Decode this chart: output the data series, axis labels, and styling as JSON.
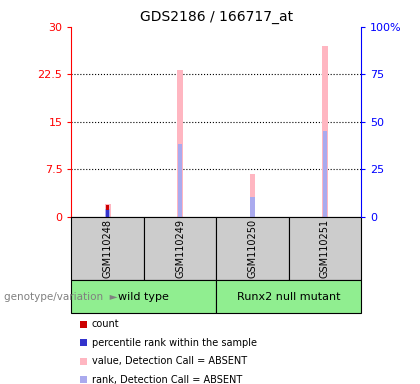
{
  "title": "GDS2186 / 166717_at",
  "samples": [
    "GSM110248",
    "GSM110249",
    "GSM110250",
    "GSM110251"
  ],
  "left_yticks": [
    0,
    7.5,
    15,
    22.5,
    30
  ],
  "left_ylim": [
    0,
    30
  ],
  "right_yticks": [
    0,
    25,
    50,
    75,
    100
  ],
  "right_ylim": [
    0,
    100
  ],
  "pink_bar_color": "#FFB6C1",
  "lavender_bar_color": "#AAAAEE",
  "red_bar_color": "#CC0000",
  "blue_bar_color": "#3333CC",
  "value_bars": [
    2.0,
    23.2,
    6.8,
    27.0
  ],
  "rank_bars": [
    1.2,
    11.5,
    3.2,
    13.5
  ],
  "count_bars": [
    1.9,
    0.0,
    0.0,
    0.0
  ],
  "percentile_bars": [
    1.1,
    0.0,
    0.0,
    0.0
  ],
  "legend_items": [
    {
      "label": "count",
      "color": "#CC0000"
    },
    {
      "label": "percentile rank within the sample",
      "color": "#3333CC"
    },
    {
      "label": "value, Detection Call = ABSENT",
      "color": "#FFB6C1"
    },
    {
      "label": "rank, Detection Call = ABSENT",
      "color": "#AAAAEE"
    }
  ],
  "genotype_label": "genotype/variation",
  "background_color": "#FFFFFF",
  "sample_box_color": "#CCCCCC",
  "group_box_color": "#90EE90",
  "group_defs": [
    [
      "wild type",
      0,
      1
    ],
    [
      "Runx2 null mutant",
      2,
      3
    ]
  ],
  "pink_bar_width": 0.08,
  "rank_bar_width": 0.06,
  "count_bar_width": 0.04
}
